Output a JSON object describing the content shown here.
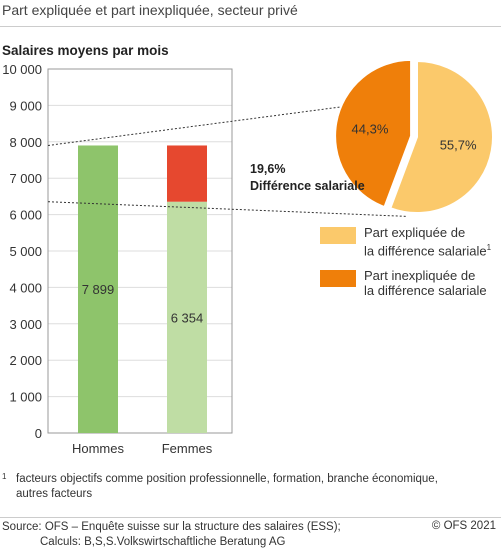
{
  "title": "Part expliquée et part inexpliquée, secteur privé",
  "chart_data": [
    {
      "type": "bar",
      "ylabel": "Salaires moyens par mois",
      "ylim": [
        0,
        10000
      ],
      "y_ticks": [
        "0",
        "1 000",
        "2 000",
        "3 000",
        "4 000",
        "5 000",
        "6 000",
        "7 000",
        "8 000",
        "9 000",
        "10 000"
      ],
      "categories": [
        "Hommes",
        "Femmes"
      ],
      "values": [
        7899,
        6354
      ],
      "value_labels": [
        "7 899",
        "6 354"
      ],
      "difference_segment": {
        "from": 6354,
        "to": 7899
      },
      "difference_label": {
        "percent": "19,6%",
        "text": "Différence salariale"
      },
      "colors": {
        "hommes": "#8ec46b",
        "femmes": "#bfdda4",
        "difference": "#e6482f"
      }
    },
    {
      "type": "pie",
      "labels": [
        "Part expliquée de la différence salariale",
        "Part inexpliquée de la différence salariale"
      ],
      "values": [
        55.7,
        44.3
      ],
      "value_labels": [
        "55,7%",
        "44,3%"
      ],
      "colors": [
        "#fbc96b",
        "#ef7f0a"
      ],
      "legend": "right"
    }
  ],
  "legend": {
    "items": [
      {
        "line1": "Part expliquée de",
        "line2": "la différence salariale",
        "sup": "1",
        "color": "#fbc96b"
      },
      {
        "line1": "Part inexpliquée de",
        "line2": "la différence salariale",
        "sup": "",
        "color": "#ef7f0a"
      }
    ]
  },
  "footnote": {
    "marker": "1",
    "text": "facteurs objectifs comme position professionnelle, formation, branche économique, autres facteurs"
  },
  "source": {
    "line1": "Source: OFS – Enquête suisse sur la structure des salaires (ESS);",
    "line2": "Calculs: B,S,S.Volkswirtschaftliche Beratung AG"
  },
  "copyright": "© OFS 2021"
}
